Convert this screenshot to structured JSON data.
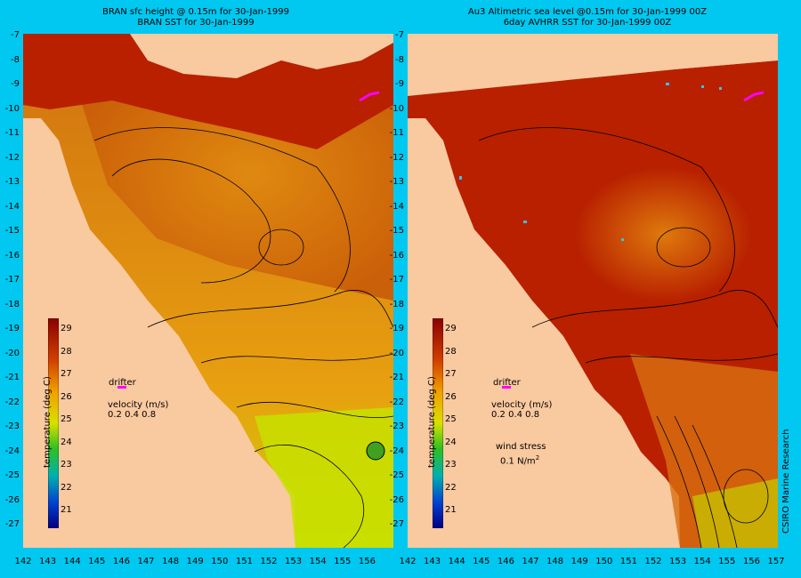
{
  "left_title_1": "BRAN sfc height @ 0.15m for 30-Jan-1999",
  "left_title_2": "BRAN SST for 30-Jan-1999",
  "right_title_1": "Au3 Altimetric sea level  @0.15m  for 30-Jan-1999 00Z",
  "right_title_2": "6day AVHRR SST for 30-Jan-1999 00Z",
  "y_ticks": [
    "-7",
    "-8",
    "-9",
    "-10",
    "-11",
    "-12",
    "-13",
    "-14",
    "-15",
    "-16",
    "-17",
    "-18",
    "-19",
    "-20",
    "-21",
    "-22",
    "-23",
    "-24",
    "-25",
    "-26",
    "-27"
  ],
  "x_ticks_left": [
    "142",
    "143",
    "144",
    "145",
    "146",
    "147",
    "148",
    "149",
    "150",
    "151",
    "152",
    "153",
    "154",
    "155",
    "156"
  ],
  "x_ticks_right": [
    "142",
    "143",
    "144",
    "145",
    "146",
    "147",
    "148",
    "149",
    "150",
    "151",
    "152",
    "153",
    "154",
    "155",
    "156",
    "157"
  ],
  "colorbar": {
    "title": "temperature (deg C)",
    "ticks": [
      "29",
      "28",
      "27",
      "26",
      "25",
      "24",
      "23",
      "22",
      "21"
    ]
  },
  "legend": {
    "drifter": "drifter",
    "velocity": "velocity (m/s)",
    "velocity_scale": "0.2 0.4 0.8",
    "wind_stress": "wind stress",
    "wind_value": "0.1 N/m",
    "wind_exp": "2"
  },
  "credit": "CSIRO Marine Research",
  "colors": {
    "background": "#00c8f0",
    "land": "#f9c9a0",
    "warm_sea": "#b82000",
    "mid_sea": "#d86a08",
    "cool_sea": "#c8e000",
    "drifter": "#ff00ff"
  }
}
